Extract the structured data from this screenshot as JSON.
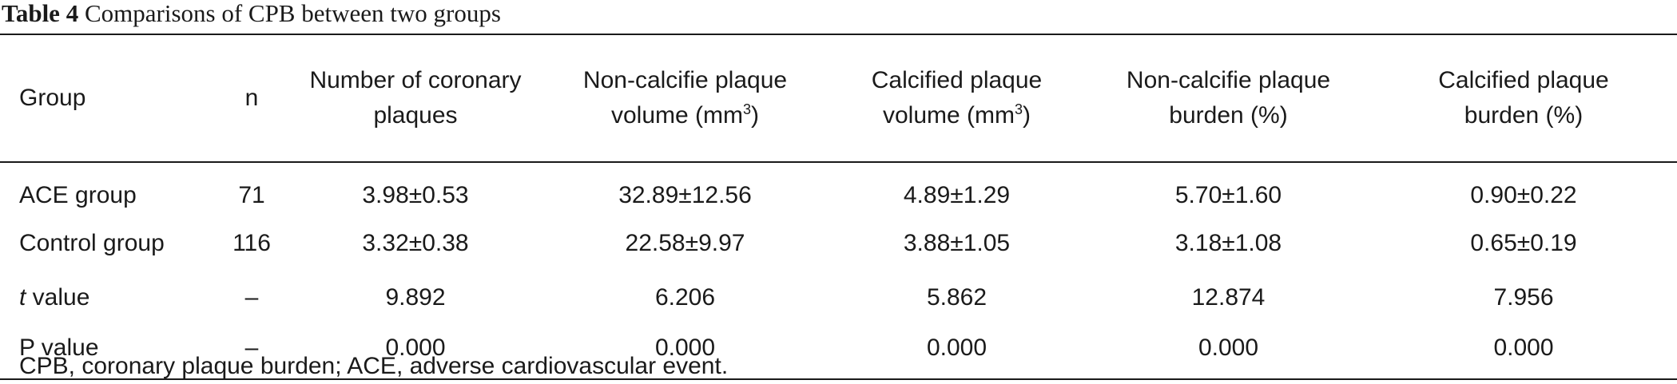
{
  "caption": {
    "label": "Table 4",
    "text": "Comparisons of CPB between two groups"
  },
  "table": {
    "headers": [
      {
        "line1": "Group",
        "line2": "",
        "sup": ""
      },
      {
        "line1": "n",
        "line2": "",
        "sup": ""
      },
      {
        "line1": "Number of coronary",
        "line2": "plaques",
        "sup": ""
      },
      {
        "line1": "Non-calcifie plaque",
        "line2": "volume (mm",
        "sup": "3",
        "tail": ")"
      },
      {
        "line1": "Calcified plaque",
        "line2": "volume (mm",
        "sup": "3",
        "tail": ")"
      },
      {
        "line1": "Non-calcifie plaque",
        "line2": "burden (%)",
        "sup": ""
      },
      {
        "line1": "Calcified plaque",
        "line2": "burden (%)",
        "sup": ""
      }
    ],
    "rows": [
      {
        "group": "ACE group",
        "group_italic_prefix": "",
        "n": "71",
        "num_plaques": "3.98±0.53",
        "noncalc_volume": "32.89±12.56",
        "calc_volume": "4.89±1.29",
        "noncalc_burden": "5.70±1.60",
        "calc_burden": "0.90±0.22"
      },
      {
        "group": "Control group",
        "group_italic_prefix": "",
        "n": "116",
        "num_plaques": "3.32±0.38",
        "noncalc_volume": "22.58±9.97",
        "calc_volume": "3.88±1.05",
        "noncalc_burden": "3.18±1.08",
        "calc_burden": "0.65±0.19"
      },
      {
        "group": " value",
        "group_italic_prefix": "t",
        "n": "–",
        "num_plaques": "9.892",
        "noncalc_volume": "6.206",
        "calc_volume": "5.862",
        "noncalc_burden": "12.874",
        "calc_burden": "7.956"
      },
      {
        "group": "P value",
        "group_italic_prefix": "",
        "n": "–",
        "num_plaques": "0.000",
        "noncalc_volume": "0.000",
        "calc_volume": "0.000",
        "noncalc_burden": "0.000",
        "calc_burden": "0.000"
      }
    ]
  },
  "footnote": "CPB, coronary plaque burden; ACE, adverse cardiovascular event."
}
